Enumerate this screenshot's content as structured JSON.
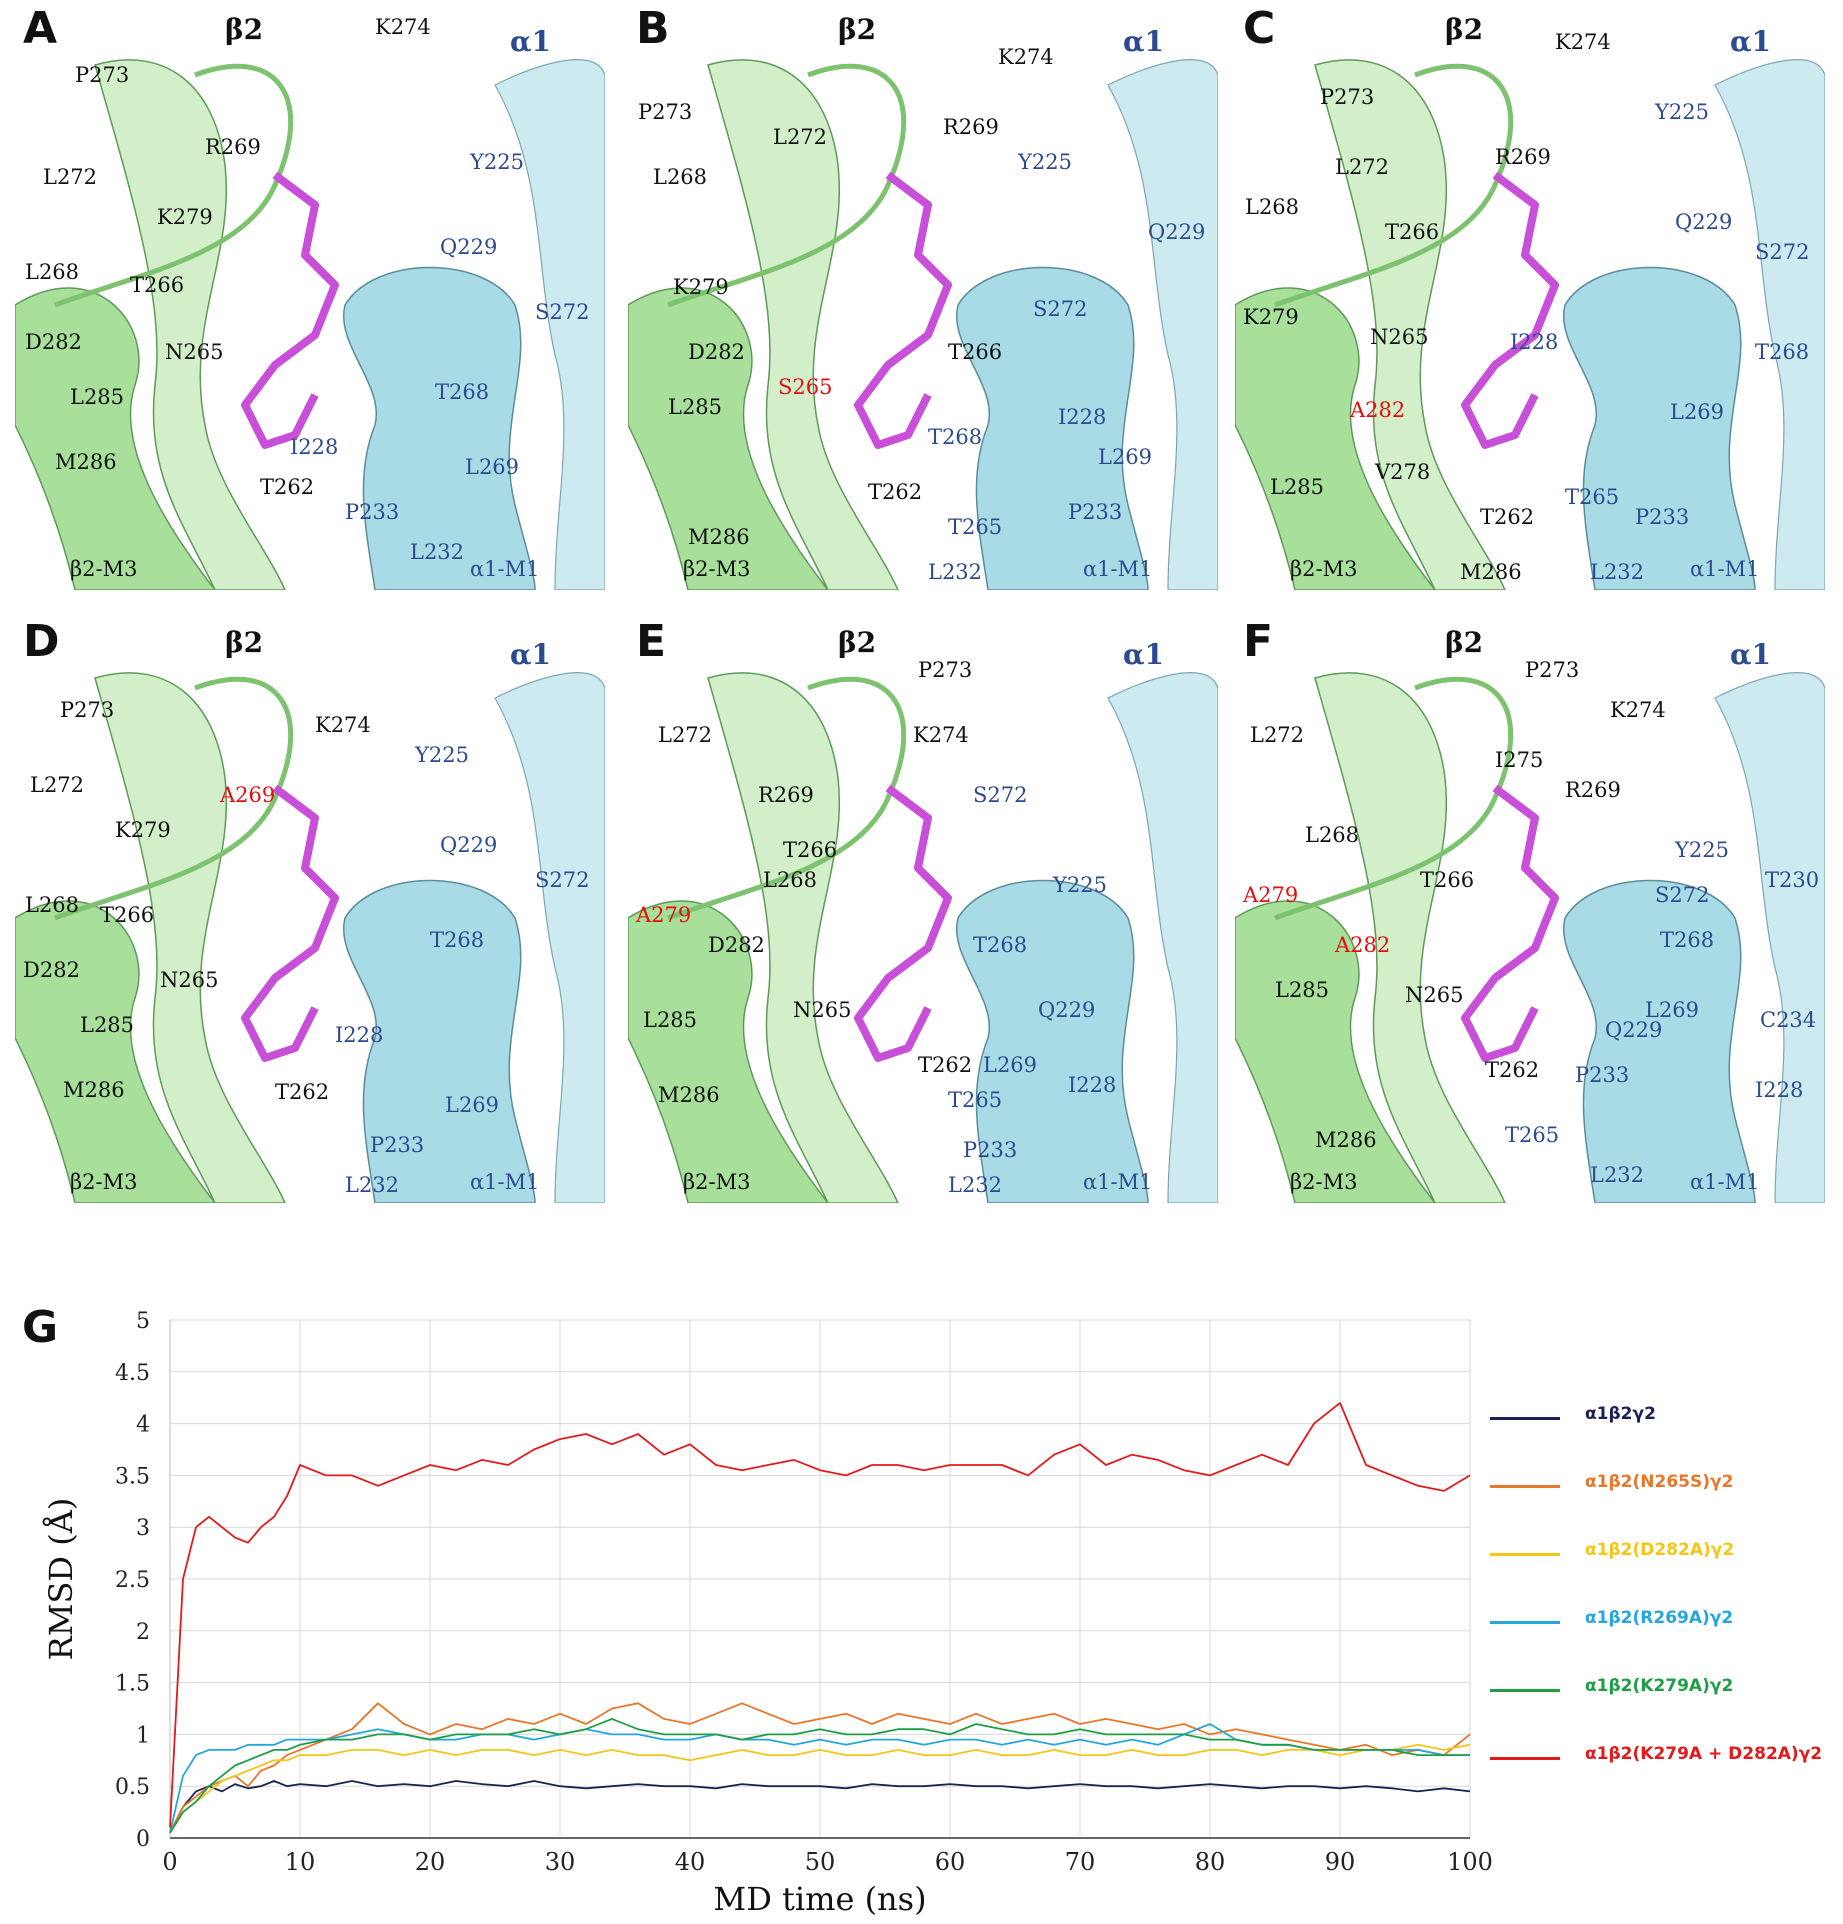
{
  "panels": [
    {
      "id": "A",
      "beta_title": "β2",
      "alpha_title": "α1",
      "beta_helix": "β2-M3",
      "alpha_helix": "α1-M1",
      "residues": [
        {
          "text": "K274",
          "kind": "beta"
        },
        {
          "text": "P273",
          "kind": "beta"
        },
        {
          "text": "L272",
          "kind": "beta"
        },
        {
          "text": "R269",
          "kind": "beta"
        },
        {
          "text": "K279",
          "kind": "beta"
        },
        {
          "text": "L268",
          "kind": "beta"
        },
        {
          "text": "T266",
          "kind": "beta"
        },
        {
          "text": "D282",
          "kind": "beta"
        },
        {
          "text": "N265",
          "kind": "beta"
        },
        {
          "text": "L285",
          "kind": "beta"
        },
        {
          "text": "M286",
          "kind": "beta"
        },
        {
          "text": "T262",
          "kind": "beta"
        },
        {
          "text": "Y225",
          "kind": "alpha"
        },
        {
          "text": "Q229",
          "kind": "alpha"
        },
        {
          "text": "S272",
          "kind": "alpha"
        },
        {
          "text": "T268",
          "kind": "alpha"
        },
        {
          "text": "I228",
          "kind": "alpha"
        },
        {
          "text": "L269",
          "kind": "alpha"
        },
        {
          "text": "P233",
          "kind": "alpha"
        },
        {
          "text": "L232",
          "kind": "alpha"
        }
      ]
    },
    {
      "id": "B",
      "beta_title": "β2",
      "alpha_title": "α1",
      "beta_helix": "β2-M3",
      "alpha_helix": "α1-M1",
      "residues": [
        {
          "text": "K274",
          "kind": "beta"
        },
        {
          "text": "P273",
          "kind": "beta"
        },
        {
          "text": "L272",
          "kind": "beta"
        },
        {
          "text": "R269",
          "kind": "beta"
        },
        {
          "text": "L268",
          "kind": "beta"
        },
        {
          "text": "K279",
          "kind": "beta"
        },
        {
          "text": "D282",
          "kind": "beta"
        },
        {
          "text": "S265",
          "kind": "mut"
        },
        {
          "text": "T266",
          "kind": "beta"
        },
        {
          "text": "L285",
          "kind": "beta"
        },
        {
          "text": "T262",
          "kind": "beta"
        },
        {
          "text": "M286",
          "kind": "beta"
        },
        {
          "text": "Y225",
          "kind": "alpha"
        },
        {
          "text": "Q229",
          "kind": "alpha"
        },
        {
          "text": "S272",
          "kind": "alpha"
        },
        {
          "text": "I228",
          "kind": "alpha"
        },
        {
          "text": "T268",
          "kind": "alpha"
        },
        {
          "text": "L269",
          "kind": "alpha"
        },
        {
          "text": "P233",
          "kind": "alpha"
        },
        {
          "text": "T265",
          "kind": "alpha"
        },
        {
          "text": "L232",
          "kind": "alpha"
        }
      ]
    },
    {
      "id": "C",
      "beta_title": "β2",
      "alpha_title": "α1",
      "beta_helix": "β2-M3",
      "alpha_helix": "α1-M1",
      "residues": [
        {
          "text": "K274",
          "kind": "beta"
        },
        {
          "text": "P273",
          "kind": "beta"
        },
        {
          "text": "L272",
          "kind": "beta"
        },
        {
          "text": "R269",
          "kind": "beta"
        },
        {
          "text": "L268",
          "kind": "beta"
        },
        {
          "text": "T266",
          "kind": "beta"
        },
        {
          "text": "K279",
          "kind": "beta"
        },
        {
          "text": "N265",
          "kind": "beta"
        },
        {
          "text": "A282",
          "kind": "mut"
        },
        {
          "text": "V278",
          "kind": "beta"
        },
        {
          "text": "L285",
          "kind": "beta"
        },
        {
          "text": "T262",
          "kind": "beta"
        },
        {
          "text": "M286",
          "kind": "beta"
        },
        {
          "text": "Y225",
          "kind": "alpha"
        },
        {
          "text": "Q229",
          "kind": "alpha"
        },
        {
          "text": "S272",
          "kind": "alpha"
        },
        {
          "text": "I228",
          "kind": "alpha"
        },
        {
          "text": "T268",
          "kind": "alpha"
        },
        {
          "text": "L269",
          "kind": "alpha"
        },
        {
          "text": "T265",
          "kind": "alpha"
        },
        {
          "text": "P233",
          "kind": "alpha"
        },
        {
          "text": "L232",
          "kind": "alpha"
        }
      ]
    },
    {
      "id": "D",
      "beta_title": "β2",
      "alpha_title": "α1",
      "beta_helix": "β2-M3",
      "alpha_helix": "α1-M1",
      "residues": [
        {
          "text": "P273",
          "kind": "beta"
        },
        {
          "text": "K274",
          "kind": "beta"
        },
        {
          "text": "L272",
          "kind": "beta"
        },
        {
          "text": "A269",
          "kind": "mut"
        },
        {
          "text": "K279",
          "kind": "beta"
        },
        {
          "text": "L268",
          "kind": "beta"
        },
        {
          "text": "T266",
          "kind": "beta"
        },
        {
          "text": "D282",
          "kind": "beta"
        },
        {
          "text": "N265",
          "kind": "beta"
        },
        {
          "text": "L285",
          "kind": "beta"
        },
        {
          "text": "M286",
          "kind": "beta"
        },
        {
          "text": "T262",
          "kind": "beta"
        },
        {
          "text": "Y225",
          "kind": "alpha"
        },
        {
          "text": "Q229",
          "kind": "alpha"
        },
        {
          "text": "S272",
          "kind": "alpha"
        },
        {
          "text": "T268",
          "kind": "alpha"
        },
        {
          "text": "I228",
          "kind": "alpha"
        },
        {
          "text": "L269",
          "kind": "alpha"
        },
        {
          "text": "P233",
          "kind": "alpha"
        },
        {
          "text": "L232",
          "kind": "alpha"
        }
      ]
    },
    {
      "id": "E",
      "beta_title": "β2",
      "alpha_title": "α1",
      "beta_helix": "β2-M3",
      "alpha_helix": "α1-M1",
      "residues": [
        {
          "text": "P273",
          "kind": "beta"
        },
        {
          "text": "L272",
          "kind": "beta"
        },
        {
          "text": "K274",
          "kind": "beta"
        },
        {
          "text": "R269",
          "kind": "beta"
        },
        {
          "text": "T266",
          "kind": "beta"
        },
        {
          "text": "L268",
          "kind": "beta"
        },
        {
          "text": "A279",
          "kind": "mut"
        },
        {
          "text": "D282",
          "kind": "beta"
        },
        {
          "text": "N265",
          "kind": "beta"
        },
        {
          "text": "L285",
          "kind": "beta"
        },
        {
          "text": "T262",
          "kind": "beta"
        },
        {
          "text": "M286",
          "kind": "beta"
        },
        {
          "text": "S272",
          "kind": "alpha"
        },
        {
          "text": "Y225",
          "kind": "alpha"
        },
        {
          "text": "T268",
          "kind": "alpha"
        },
        {
          "text": "Q229",
          "kind": "alpha"
        },
        {
          "text": "L269",
          "kind": "alpha"
        },
        {
          "text": "I228",
          "kind": "alpha"
        },
        {
          "text": "T265",
          "kind": "alpha"
        },
        {
          "text": "P233",
          "kind": "alpha"
        },
        {
          "text": "L232",
          "kind": "alpha"
        }
      ]
    },
    {
      "id": "F",
      "beta_title": "β2",
      "alpha_title": "α1",
      "beta_helix": "β2-M3",
      "alpha_helix": "α1-M1",
      "residues": [
        {
          "text": "P273",
          "kind": "beta"
        },
        {
          "text": "K274",
          "kind": "beta"
        },
        {
          "text": "I275",
          "kind": "beta"
        },
        {
          "text": "L272",
          "kind": "beta"
        },
        {
          "text": "R269",
          "kind": "beta"
        },
        {
          "text": "L268",
          "kind": "beta"
        },
        {
          "text": "T266",
          "kind": "beta"
        },
        {
          "text": "A279",
          "kind": "mut"
        },
        {
          "text": "A282",
          "kind": "mut"
        },
        {
          "text": "L285",
          "kind": "beta"
        },
        {
          "text": "N265",
          "kind": "beta"
        },
        {
          "text": "T262",
          "kind": "beta"
        },
        {
          "text": "M286",
          "kind": "beta"
        },
        {
          "text": "Y225",
          "kind": "alpha"
        },
        {
          "text": "S272",
          "kind": "alpha"
        },
        {
          "text": "T230",
          "kind": "alpha"
        },
        {
          "text": "T268",
          "kind": "alpha"
        },
        {
          "text": "L269",
          "kind": "alpha"
        },
        {
          "text": "Q229",
          "kind": "alpha"
        },
        {
          "text": "C234",
          "kind": "alpha"
        },
        {
          "text": "P233",
          "kind": "alpha"
        },
        {
          "text": "I228",
          "kind": "alpha"
        },
        {
          "text": "T265",
          "kind": "alpha"
        },
        {
          "text": "L232",
          "kind": "alpha"
        }
      ]
    }
  ],
  "chart_data": {
    "panel_label": "G",
    "type": "line",
    "title": "",
    "xlabel": "MD time (ns)",
    "ylabel": "RMSD (Å)",
    "xlim": [
      0,
      100
    ],
    "ylim": [
      0,
      5
    ],
    "xticks": [
      0,
      10,
      20,
      30,
      40,
      50,
      60,
      70,
      80,
      90,
      100
    ],
    "yticks": [
      0,
      0.5,
      1,
      1.5,
      2,
      2.5,
      3,
      3.5,
      4,
      4.5,
      5
    ],
    "grid": true,
    "legend_position": "right",
    "x": [
      0,
      1,
      2,
      3,
      4,
      5,
      6,
      7,
      8,
      9,
      10,
      12,
      14,
      16,
      18,
      20,
      22,
      24,
      26,
      28,
      30,
      32,
      34,
      36,
      38,
      40,
      42,
      44,
      46,
      48,
      50,
      52,
      54,
      56,
      58,
      60,
      62,
      64,
      66,
      68,
      70,
      72,
      74,
      76,
      78,
      80,
      82,
      84,
      86,
      88,
      90,
      92,
      94,
      96,
      98,
      100
    ],
    "series": [
      {
        "name": "α1β2γ2",
        "color": "#1a2255",
        "values": [
          0.05,
          0.3,
          0.45,
          0.5,
          0.45,
          0.52,
          0.48,
          0.5,
          0.55,
          0.5,
          0.52,
          0.5,
          0.55,
          0.5,
          0.52,
          0.5,
          0.55,
          0.52,
          0.5,
          0.55,
          0.5,
          0.48,
          0.5,
          0.52,
          0.5,
          0.5,
          0.48,
          0.52,
          0.5,
          0.5,
          0.5,
          0.48,
          0.52,
          0.5,
          0.5,
          0.52,
          0.5,
          0.5,
          0.48,
          0.5,
          0.52,
          0.5,
          0.5,
          0.48,
          0.5,
          0.52,
          0.5,
          0.48,
          0.5,
          0.5,
          0.48,
          0.5,
          0.48,
          0.45,
          0.48,
          0.45
        ]
      },
      {
        "name": "α1β2(N265S)γ2",
        "color": "#e9772a",
        "values": [
          0.05,
          0.3,
          0.4,
          0.5,
          0.55,
          0.6,
          0.5,
          0.65,
          0.7,
          0.8,
          0.85,
          0.95,
          1.05,
          1.3,
          1.1,
          1.0,
          1.1,
          1.05,
          1.15,
          1.1,
          1.2,
          1.1,
          1.25,
          1.3,
          1.15,
          1.1,
          1.2,
          1.3,
          1.2,
          1.1,
          1.15,
          1.2,
          1.1,
          1.2,
          1.15,
          1.1,
          1.2,
          1.1,
          1.15,
          1.2,
          1.1,
          1.15,
          1.1,
          1.05,
          1.1,
          1.0,
          1.05,
          1.0,
          0.95,
          0.9,
          0.85,
          0.9,
          0.8,
          0.85,
          0.8,
          1.0
        ]
      },
      {
        "name": "α1β2(D282A)γ2",
        "color": "#f5c518",
        "values": [
          0.05,
          0.25,
          0.35,
          0.45,
          0.55,
          0.6,
          0.65,
          0.7,
          0.75,
          0.75,
          0.8,
          0.8,
          0.85,
          0.85,
          0.8,
          0.85,
          0.8,
          0.85,
          0.85,
          0.8,
          0.85,
          0.8,
          0.85,
          0.8,
          0.8,
          0.75,
          0.8,
          0.85,
          0.8,
          0.8,
          0.85,
          0.8,
          0.8,
          0.85,
          0.8,
          0.8,
          0.85,
          0.8,
          0.8,
          0.85,
          0.8,
          0.8,
          0.85,
          0.8,
          0.8,
          0.85,
          0.85,
          0.8,
          0.85,
          0.85,
          0.8,
          0.85,
          0.85,
          0.9,
          0.85,
          0.9
        ]
      },
      {
        "name": "α1β2(R269A)γ2",
        "color": "#25a6dc",
        "values": [
          0.05,
          0.6,
          0.8,
          0.85,
          0.85,
          0.85,
          0.9,
          0.9,
          0.9,
          0.95,
          0.95,
          0.95,
          1.0,
          1.05,
          1.0,
          0.95,
          0.95,
          1.0,
          1.0,
          0.95,
          1.0,
          1.05,
          1.0,
          1.0,
          0.95,
          0.95,
          1.0,
          0.95,
          0.95,
          0.9,
          0.95,
          0.9,
          0.95,
          0.95,
          0.9,
          0.95,
          0.95,
          0.9,
          0.95,
          0.9,
          0.95,
          0.9,
          0.95,
          0.9,
          1.0,
          1.1,
          0.95,
          0.9,
          0.9,
          0.85,
          0.85,
          0.85,
          0.85,
          0.85,
          0.8,
          0.8
        ]
      },
      {
        "name": "α1β2(K279A)γ2",
        "color": "#1f9e45",
        "values": [
          0.05,
          0.25,
          0.35,
          0.5,
          0.6,
          0.7,
          0.75,
          0.8,
          0.85,
          0.85,
          0.9,
          0.95,
          0.95,
          1.0,
          1.0,
          0.95,
          1.0,
          1.0,
          1.0,
          1.05,
          1.0,
          1.05,
          1.15,
          1.05,
          1.0,
          1.0,
          1.0,
          0.95,
          1.0,
          1.0,
          1.05,
          1.0,
          1.0,
          1.05,
          1.05,
          1.0,
          1.1,
          1.05,
          1.0,
          1.0,
          1.05,
          1.0,
          1.0,
          1.0,
          1.0,
          0.95,
          0.95,
          0.9,
          0.9,
          0.85,
          0.85,
          0.85,
          0.85,
          0.8,
          0.8,
          0.8
        ]
      },
      {
        "name": "α1β2(K279A + D282A)γ2",
        "color": "#e3191c",
        "values": [
          0.1,
          2.5,
          3.0,
          3.1,
          3.0,
          2.9,
          2.85,
          3.0,
          3.1,
          3.3,
          3.6,
          3.5,
          3.5,
          3.4,
          3.5,
          3.6,
          3.55,
          3.65,
          3.6,
          3.75,
          3.85,
          3.9,
          3.8,
          3.9,
          3.7,
          3.8,
          3.6,
          3.55,
          3.6,
          3.65,
          3.55,
          3.5,
          3.6,
          3.6,
          3.55,
          3.6,
          3.6,
          3.6,
          3.5,
          3.7,
          3.8,
          3.6,
          3.7,
          3.65,
          3.55,
          3.5,
          3.6,
          3.7,
          3.6,
          4.0,
          4.2,
          3.6,
          3.5,
          3.4,
          3.35,
          3.5
        ]
      }
    ]
  }
}
